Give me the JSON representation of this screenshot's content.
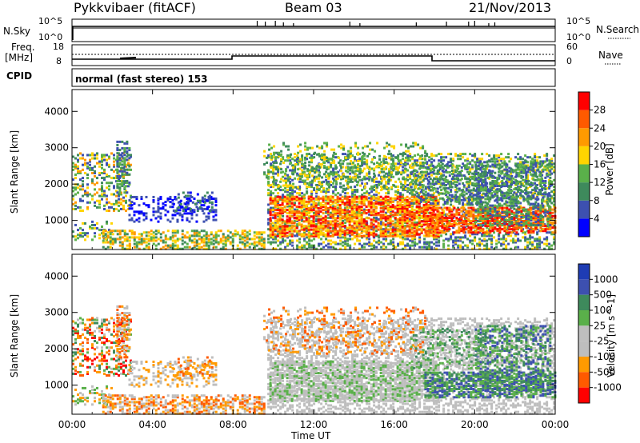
{
  "header": {
    "station": "Pykkvibaer (fitACF)",
    "beam": "Beam 03",
    "date": "21/Nov/2013"
  },
  "noise_panel": {
    "left_label": "N.Sky",
    "left_ticks": [
      "10^5",
      "10^0"
    ],
    "right_ticks": [
      "10^5",
      "10^0"
    ],
    "right_label": "N.Search"
  },
  "freq_panel": {
    "left_label_1": "Freq.",
    "left_label_2": "[MHz]",
    "left_ticks": [
      "18",
      "8"
    ],
    "right_ticks": [
      "60",
      "0"
    ],
    "right_label": "Nave"
  },
  "cpid_panel": {
    "label": "CPID",
    "text": "normal (fast stereo) 153"
  },
  "colors": {
    "power": [
      "#0000ff",
      "#3d50b0",
      "#3e8a5c",
      "#5ab04a",
      "#ffd400",
      "#ff9a00",
      "#ff5a00",
      "#ff0000"
    ],
    "velocity": [
      "#ff0000",
      "#ff5a00",
      "#ff9a00",
      "#bebebe",
      "#bebebe",
      "#5ab04a",
      "#3e8a5c",
      "#3d50b0",
      "#1e3cb4"
    ]
  },
  "chart_data": [
    {
      "type": "heatmap",
      "name": "power-panel",
      "ylabel": "Slant Range [km]",
      "x_ticks": [
        "00:00",
        "04:00",
        "08:00",
        "12:00",
        "16:00",
        "20:00",
        "00:00"
      ],
      "y_ticks": [
        1000,
        2000,
        3000,
        4000
      ],
      "ylim": [
        200,
        4600
      ],
      "xlim_hours": [
        0,
        24
      ],
      "colorbar": {
        "label": "Power [dB]",
        "tick_labels": [
          "4",
          "8",
          "12",
          "16",
          "20",
          "24",
          "28"
        ],
        "range": [
          0,
          32
        ]
      }
    },
    {
      "type": "heatmap",
      "name": "velocity-panel",
      "ylabel": "Slant Range [km]",
      "xlabel": "Time UT",
      "x_ticks": [
        "00:00",
        "04:00",
        "08:00",
        "12:00",
        "16:00",
        "20:00",
        "00:00"
      ],
      "y_ticks": [
        1000,
        2000,
        3000,
        4000
      ],
      "ylim": [
        200,
        4600
      ],
      "xlim_hours": [
        0,
        24
      ],
      "colorbar": {
        "label": "Velocity [m s^-1]",
        "tick_labels": [
          "1000",
          "500",
          "100",
          "25",
          "-25",
          "-100",
          "-500",
          "-1000"
        ]
      }
    }
  ]
}
